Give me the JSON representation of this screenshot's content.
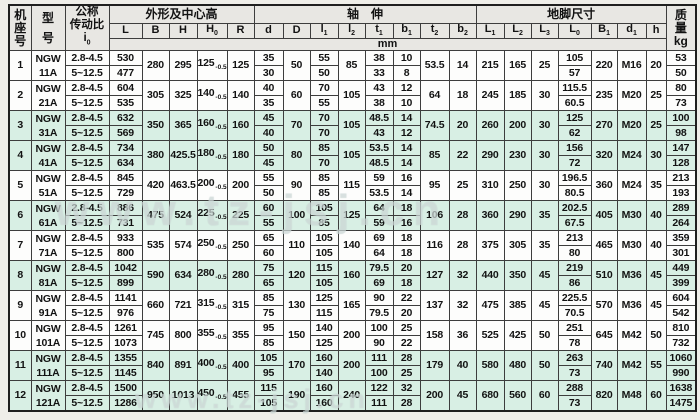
{
  "page": {
    "watermark_mid": "www.tz-jsj.cn",
    "watermark_bottom": "www.tz-jsj.cn"
  },
  "header": {
    "frame_lines": [
      "机",
      "座",
      "号"
    ],
    "model_lines": [
      "型",
      "号"
    ],
    "ratio_lines": [
      "公称",
      "传动比"
    ],
    "ratio_symbol": {
      "t": "i",
      "s": "0"
    },
    "group_outline": "外形及中心高",
    "group_shaft": "轴　伸",
    "group_foot": "地脚尺寸",
    "mass_lines": [
      "质",
      "量",
      "kg"
    ],
    "unit": "mm",
    "h0_tol": "-0.5",
    "cols": [
      {
        "t": "L"
      },
      {
        "t": "B"
      },
      {
        "t": "H"
      },
      {
        "t": "H",
        "s": "0"
      },
      {
        "t": "R"
      },
      {
        "t": "d"
      },
      {
        "t": "D"
      },
      {
        "t": "l",
        "s": "1"
      },
      {
        "t": "l",
        "s": "2"
      },
      {
        "t": "t",
        "s": "1"
      },
      {
        "t": "b",
        "s": "1"
      },
      {
        "t": "t",
        "s": "2"
      },
      {
        "t": "b",
        "s": "2"
      },
      {
        "t": "L",
        "s": "1"
      },
      {
        "t": "L",
        "s": "2"
      },
      {
        "t": "L",
        "s": "3"
      },
      {
        "t": "L",
        "s": "0"
      },
      {
        "t": "B",
        "s": "1"
      },
      {
        "t": "d",
        "s": "1"
      },
      {
        "t": "h"
      }
    ]
  },
  "rows": [
    {
      "no": "1",
      "green": false,
      "model": [
        "NGW",
        "11A"
      ],
      "ratio": [
        "2.8-4.5",
        "5~12.5"
      ],
      "L": [
        "530",
        "477"
      ],
      "B": "280",
      "H": "295",
      "H0": "125",
      "R": "125",
      "d": [
        "35",
        "30"
      ],
      "D": "50",
      "l1": [
        "55",
        "50"
      ],
      "l2": "85",
      "t1": [
        "38",
        "33"
      ],
      "b1": [
        "10",
        "8"
      ],
      "t2": "53.5",
      "b2": "14",
      "L1": "215",
      "L2": "165",
      "L3": "25",
      "L0": [
        "105",
        "57"
      ],
      "B1": "220",
      "d1": "M16",
      "h": "20",
      "mass": [
        "53",
        "50"
      ]
    },
    {
      "no": "2",
      "green": false,
      "model": [
        "NGW",
        "21A"
      ],
      "ratio": [
        "2.8-4.5",
        "5~12.5"
      ],
      "L": [
        "604",
        "535"
      ],
      "B": "305",
      "H": "325",
      "H0": "140",
      "R": "140",
      "d": [
        "40",
        "35"
      ],
      "D": "60",
      "l1": [
        "70",
        "55"
      ],
      "l2": "105",
      "t1": [
        "43",
        "38"
      ],
      "b1": [
        "12",
        "10"
      ],
      "t2": "64",
      "b2": "18",
      "L1": "245",
      "L2": "185",
      "L3": "30",
      "L0": [
        "115.5",
        "60.5"
      ],
      "B1": "235",
      "d1": "M20",
      "h": "25",
      "mass": [
        "80",
        "73"
      ]
    },
    {
      "no": "3",
      "green": true,
      "model": [
        "NGW",
        "31A"
      ],
      "ratio": [
        "2.8-4.5",
        "5~12.5"
      ],
      "L": [
        "632",
        "569"
      ],
      "B": "350",
      "H": "365",
      "H0": "160",
      "R": "160",
      "d": [
        "45",
        "40"
      ],
      "D": "70",
      "l1": [
        "70",
        "70"
      ],
      "l2": "105",
      "t1": [
        "48.5",
        "43"
      ],
      "b1": [
        "14",
        "12"
      ],
      "t2": "74.5",
      "b2": "20",
      "L1": "260",
      "L2": "200",
      "L3": "30",
      "L0": [
        "125",
        "62"
      ],
      "B1": "270",
      "d1": "M20",
      "h": "25",
      "mass": [
        "100",
        "98"
      ]
    },
    {
      "no": "4",
      "green": true,
      "model": [
        "NGW",
        "41A"
      ],
      "ratio": [
        "2.8-4.5",
        "5~12.5"
      ],
      "L": [
        "734",
        "634"
      ],
      "B": "380",
      "H": "425.5",
      "H0": "180",
      "R": "180",
      "d": [
        "50",
        "45"
      ],
      "D": "80",
      "l1": [
        "85",
        "70"
      ],
      "l2": "105",
      "t1": [
        "53.5",
        "48.5"
      ],
      "b1": [
        "14",
        "14"
      ],
      "t2": "85",
      "b2": "22",
      "L1": "290",
      "L2": "230",
      "L3": "30",
      "L0": [
        "156",
        "72"
      ],
      "B1": "320",
      "d1": "M24",
      "h": "30",
      "mass": [
        "147",
        "128"
      ]
    },
    {
      "no": "5",
      "green": false,
      "model": [
        "NGW",
        "51A"
      ],
      "ratio": [
        "2.8-4.5",
        "5~12.5"
      ],
      "L": [
        "845",
        "729"
      ],
      "B": "420",
      "H": "463.5",
      "H0": "200",
      "R": "200",
      "d": [
        "55",
        "50"
      ],
      "D": "90",
      "l1": [
        "85",
        "85"
      ],
      "l2": "115",
      "t1": [
        "59",
        "53.5"
      ],
      "b1": [
        "16",
        "14"
      ],
      "t2": "95",
      "b2": "25",
      "L1": "310",
      "L2": "250",
      "L3": "30",
      "L0": [
        "196.5",
        "80.5"
      ],
      "B1": "360",
      "d1": "M24",
      "h": "35",
      "mass": [
        "213",
        "193"
      ]
    },
    {
      "no": "6",
      "green": true,
      "model": [
        "NGW",
        "61A"
      ],
      "ratio": [
        "2.8-4.5",
        "5~12.5"
      ],
      "L": [
        "886",
        "731"
      ],
      "B": "475",
      "H": "524",
      "H0": "225",
      "R": "225",
      "d": [
        "60",
        "55"
      ],
      "D": "100",
      "l1": [
        "105",
        "85"
      ],
      "l2": "125",
      "t1": [
        "64",
        "59"
      ],
      "b1": [
        "18",
        "16"
      ],
      "t2": "106",
      "b2": "28",
      "L1": "360",
      "L2": "290",
      "L3": "35",
      "L0": [
        "202.5",
        "67.5"
      ],
      "B1": "405",
      "d1": "M30",
      "h": "40",
      "mass": [
        "289",
        "264"
      ]
    },
    {
      "no": "7",
      "green": false,
      "model": [
        "NGW",
        "71A"
      ],
      "ratio": [
        "2.8-4.5",
        "5~12.5"
      ],
      "L": [
        "933",
        "800"
      ],
      "B": "535",
      "H": "574",
      "H0": "250",
      "R": "250",
      "d": [
        "65",
        "60"
      ],
      "D": "110",
      "l1": [
        "105",
        "105"
      ],
      "l2": "140",
      "t1": [
        "69",
        "64"
      ],
      "b1": [
        "18",
        "18"
      ],
      "t2": "116",
      "b2": "28",
      "L1": "375",
      "L2": "305",
      "L3": "35",
      "L0": [
        "213",
        "80"
      ],
      "B1": "465",
      "d1": "M30",
      "h": "40",
      "mass": [
        "359",
        "301"
      ]
    },
    {
      "no": "8",
      "green": true,
      "model": [
        "NGW",
        "81A"
      ],
      "ratio": [
        "2.8-4.5",
        "5~12.5"
      ],
      "L": [
        "1042",
        "899"
      ],
      "B": "590",
      "H": "634",
      "H0": "280",
      "R": "280",
      "d": [
        "75",
        "65"
      ],
      "D": "120",
      "l1": [
        "115",
        "105"
      ],
      "l2": "160",
      "t1": [
        "79.5",
        "69"
      ],
      "b1": [
        "20",
        "18"
      ],
      "t2": "127",
      "b2": "32",
      "L1": "440",
      "L2": "350",
      "L3": "45",
      "L0": [
        "219",
        "86"
      ],
      "B1": "510",
      "d1": "M36",
      "h": "45",
      "mass": [
        "449",
        "399"
      ]
    },
    {
      "no": "9",
      "green": false,
      "model": [
        "NGW",
        "91A"
      ],
      "ratio": [
        "2.8-4.5",
        "5~12.5"
      ],
      "L": [
        "1141",
        "976"
      ],
      "B": "660",
      "H": "721",
      "H0": "315",
      "R": "315",
      "d": [
        "85",
        "75"
      ],
      "D": "130",
      "l1": [
        "125",
        "115"
      ],
      "l2": "165",
      "t1": [
        "90",
        "79.5"
      ],
      "b1": [
        "22",
        "20"
      ],
      "t2": "137",
      "b2": "32",
      "L1": "475",
      "L2": "385",
      "L3": "45",
      "L0": [
        "225.5",
        "70.5"
      ],
      "B1": "570",
      "d1": "M36",
      "h": "45",
      "mass": [
        "604",
        "542"
      ]
    },
    {
      "no": "10",
      "green": false,
      "model": [
        "NGW",
        "101A"
      ],
      "ratio": [
        "2.8-4.5",
        "5~12.5"
      ],
      "L": [
        "1261",
        "1073"
      ],
      "B": "745",
      "H": "800",
      "H0": "355",
      "R": "355",
      "d": [
        "95",
        "85"
      ],
      "D": "150",
      "l1": [
        "140",
        "125"
      ],
      "l2": "200",
      "t1": [
        "100",
        "90"
      ],
      "b1": [
        "25",
        "22"
      ],
      "t2": "158",
      "b2": "36",
      "L1": "525",
      "L2": "425",
      "L3": "50",
      "L0": [
        "251",
        "78"
      ],
      "B1": "645",
      "d1": "M42",
      "h": "50",
      "mass": [
        "810",
        "732"
      ]
    },
    {
      "no": "11",
      "green": true,
      "model": [
        "NGW",
        "111A"
      ],
      "ratio": [
        "2.8-4.5",
        "5~12.5"
      ],
      "L": [
        "1355",
        "1145"
      ],
      "B": "840",
      "H": "891",
      "H0": "400",
      "R": "400",
      "d": [
        "105",
        "95"
      ],
      "D": "170",
      "l1": [
        "160",
        "140"
      ],
      "l2": "200",
      "t1": [
        "111",
        "100"
      ],
      "b1": [
        "28",
        "25"
      ],
      "t2": "179",
      "b2": "40",
      "L1": "580",
      "L2": "480",
      "L3": "50",
      "L0": [
        "263",
        "73"
      ],
      "B1": "740",
      "d1": "M42",
      "h": "55",
      "mass": [
        "1060",
        "990"
      ]
    },
    {
      "no": "12",
      "green": true,
      "model": [
        "NGW",
        "121A"
      ],
      "ratio": [
        "2.8-4.5",
        "5~12.5"
      ],
      "L": [
        "1500",
        "1286"
      ],
      "B": "950",
      "H": "1013",
      "H0": "450",
      "R": "455",
      "d": [
        "115",
        "105"
      ],
      "D": "190",
      "l1": [
        "160",
        "160"
      ],
      "l2": "240",
      "t1": [
        "122",
        "111"
      ],
      "b1": [
        "32",
        "28"
      ],
      "t2": "200",
      "b2": "45",
      "L1": "680",
      "L2": "560",
      "L3": "60",
      "L0": [
        "288",
        "73"
      ],
      "B1": "820",
      "d1": "M48",
      "h": "60",
      "mass": [
        "1638",
        "1475"
      ]
    }
  ]
}
